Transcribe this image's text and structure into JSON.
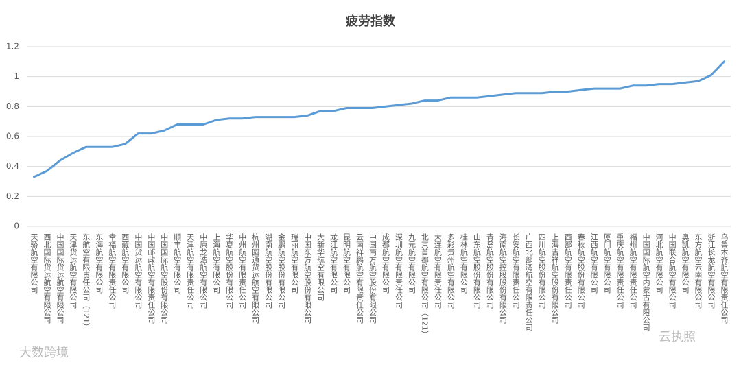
{
  "chart_data": {
    "type": "line",
    "title": "疲劳指数",
    "categories": [
      "天骄航空有限公司",
      "西北国际货运航空有限公司",
      "中国国际货运航空有限公司",
      "天津货运航空有限公司",
      "东航空有限责任公司（121）",
      "东海航空有限公司",
      "幸福航空有限责任公司",
      "西藏航空有限公司",
      "中国货运航空有限公司",
      "中国邮政航空有限责任公司",
      "中国国际航空股份有限公司",
      "顺丰航空有限公司",
      "天津航空有限责任公司",
      "中原龙浩航空有限公司",
      "上海航空有限公司",
      "华夏航空股份有限公司",
      "中州航空有限责任公司",
      "杭州圆通货运航空有限公司",
      "湖南航空股份有限公司",
      "金鹏航空股份有限公司",
      "瑞丽航空有限公司",
      "中国东方航空股份有限公司",
      "大新华航空有限公司",
      "龙江航空有限公司",
      "昆明航空有限公司",
      "云南祥鹏航空有限责任公司",
      "中国南方航空股份有限公司",
      "成都航空有限公司",
      "深圳航空有限责任公司",
      "九元航空有限公司",
      "北京首都航空有限公司（121）",
      "大连航空有限责任公司",
      "多彩贵州航空有限公司",
      "桂林航空有限公司",
      "山东航空股份有限公司",
      "青岛航空股份有限公司",
      "海南航空控股股份有限公司",
      "长安航空有限责任公司",
      "广西北部湾航空有限责任公司",
      "四川航空股份有限公司",
      "上海吉祥航空股份有限公司",
      "西部航空有限责任公司",
      "春秋航空股份有限公司",
      "江西航空有限公司",
      "厦门航空有限公司",
      "重庆航空有限责任公司",
      "福州航空有限责任公司",
      "中国国际航空内蒙古有限公司",
      "河北航空有限公司",
      "中国联合航空有限公司",
      "奥凯航空有限公司",
      "东方航空云南有限公司",
      "浙江长龙航空有限公司",
      "乌鲁木齐航空有限责任公司"
    ],
    "values": [
      0.33,
      0.37,
      0.44,
      0.49,
      0.53,
      0.53,
      0.53,
      0.55,
      0.62,
      0.62,
      0.64,
      0.68,
      0.68,
      0.68,
      0.71,
      0.72,
      0.72,
      0.73,
      0.73,
      0.73,
      0.73,
      0.74,
      0.77,
      0.77,
      0.79,
      0.79,
      0.79,
      0.8,
      0.81,
      0.82,
      0.84,
      0.84,
      0.86,
      0.86,
      0.86,
      0.87,
      0.88,
      0.89,
      0.89,
      0.89,
      0.9,
      0.9,
      0.91,
      0.92,
      0.92,
      0.92,
      0.94,
      0.94,
      0.95,
      0.95,
      0.96,
      0.97,
      1.01,
      1.1
    ],
    "color": "#5b9bd5",
    "ylim": [
      0,
      1.2
    ],
    "yticks": [
      0,
      0.2,
      0.4,
      0.6,
      0.8,
      1,
      1.2
    ],
    "grid": true
  },
  "watermarks": [
    "大数跨境",
    "云执照"
  ]
}
